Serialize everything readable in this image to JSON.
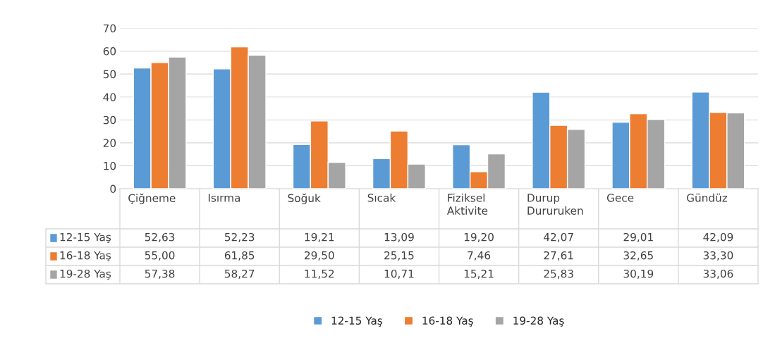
{
  "chart_data": {
    "type": "bar",
    "categories": [
      "Çiğneme",
      "Isırma",
      "Soğuk",
      "Sıcak",
      "Fiziksel Aktivite",
      "Durup Dururuken",
      "Gece",
      "Gündüz"
    ],
    "series": [
      {
        "name": "12-15 Yaş",
        "color": "#5b9bd5",
        "values": [
          52.63,
          52.23,
          19.21,
          13.09,
          19.2,
          42.07,
          29.01,
          42.09
        ],
        "value_labels": [
          "52,63",
          "52,23",
          "19,21",
          "13,09",
          "19,20",
          "42,07",
          "29,01",
          "42,09"
        ]
      },
      {
        "name": "16-18 Yaş",
        "color": "#ed7d31",
        "values": [
          55.0,
          61.85,
          29.5,
          25.15,
          7.46,
          27.61,
          32.65,
          33.3
        ],
        "value_labels": [
          "55,00",
          "61,85",
          "29,50",
          "25,15",
          "7,46",
          "27,61",
          "32,65",
          "33,30"
        ]
      },
      {
        "name": "19-28 Yaş",
        "color": "#a5a5a5",
        "values": [
          57.38,
          58.27,
          11.52,
          10.71,
          15.21,
          25.83,
          30.19,
          33.06
        ],
        "value_labels": [
          "57,38",
          "58,27",
          "11,52",
          "10,71",
          "15,21",
          "25,83",
          "30,19",
          "33,06"
        ]
      }
    ],
    "ylim": [
      0,
      70
    ],
    "yticks": [
      0,
      10,
      20,
      30,
      40,
      50,
      60,
      70
    ],
    "grid": "y",
    "legend": "bottom"
  }
}
